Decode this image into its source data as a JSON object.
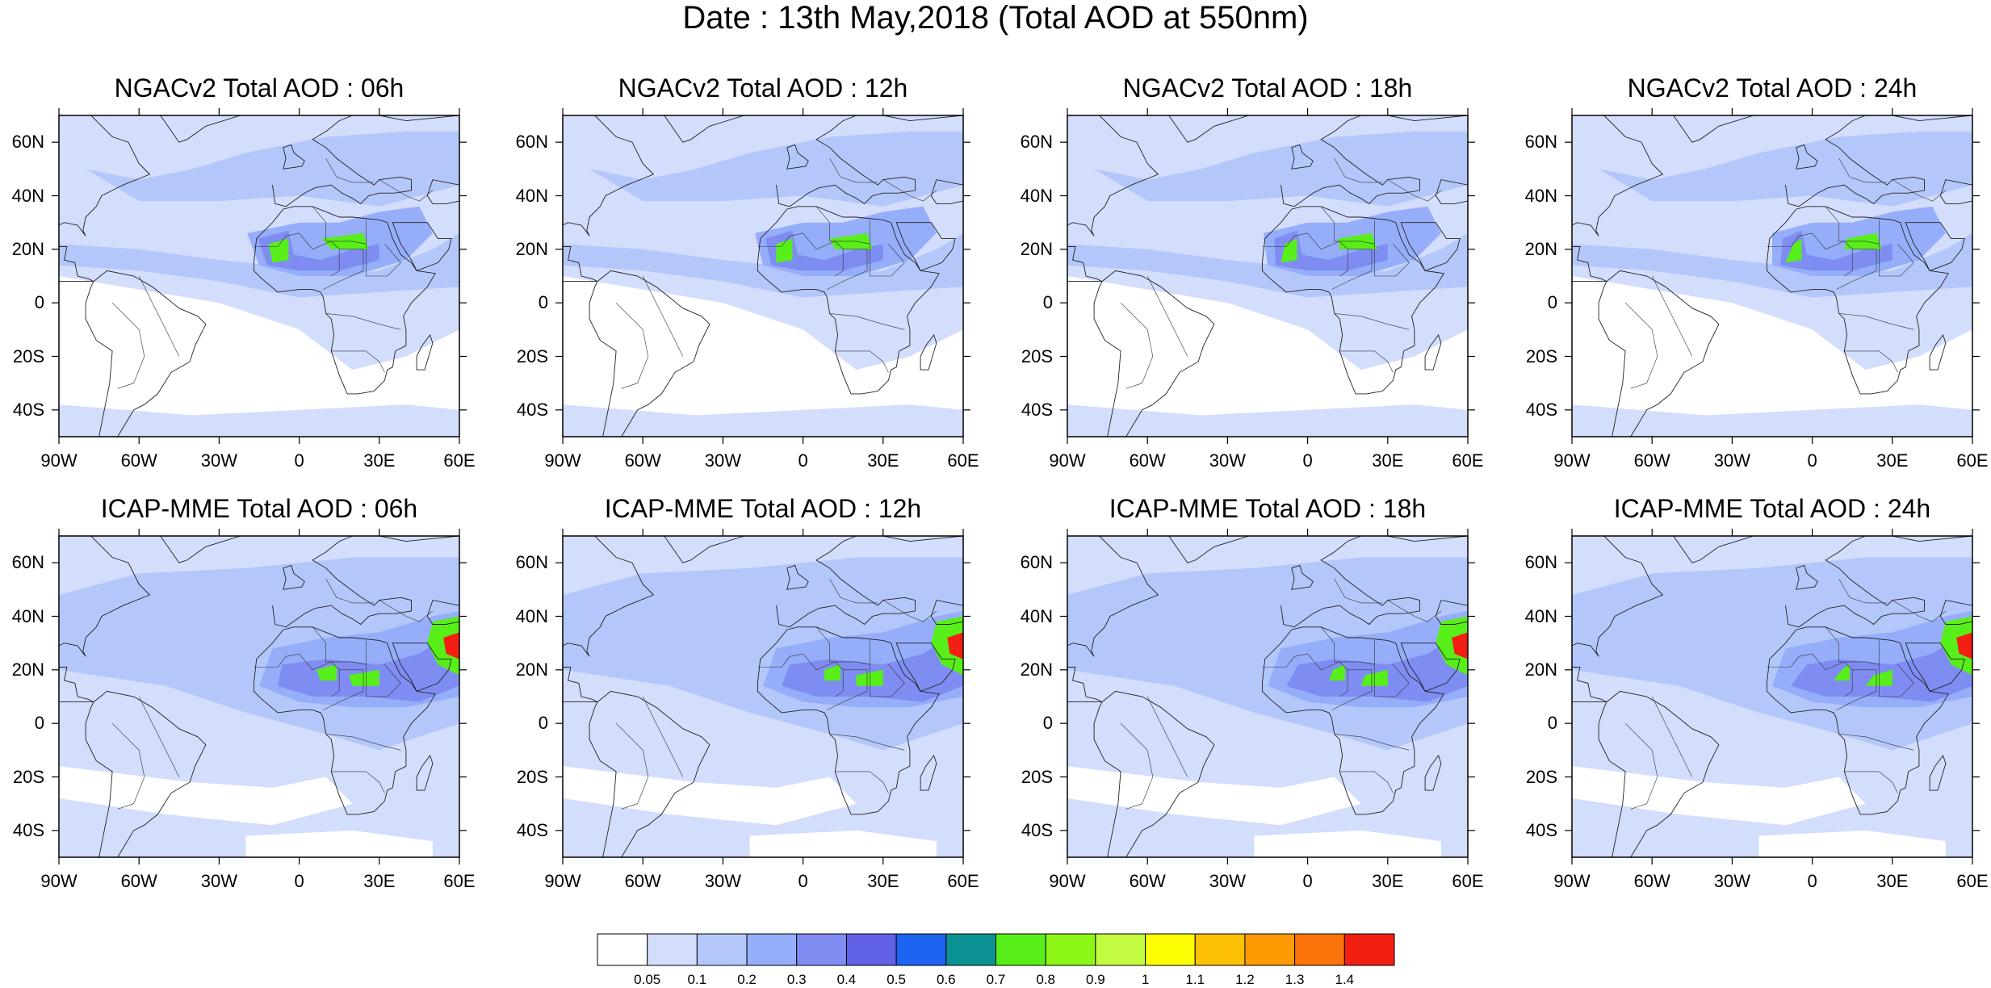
{
  "title": "Date : 13th May,2018 (Total AOD at 550nm)",
  "lon_labels": [
    "90W",
    "60W",
    "30W",
    "0",
    "30E",
    "60E"
  ],
  "lat_labels": [
    "60N",
    "40N",
    "20N",
    "0",
    "20S",
    "40S"
  ],
  "lon_range": [
    -90,
    60
  ],
  "lat_range": [
    -50,
    70
  ],
  "panels": [
    {
      "title": "NGACv2 Total AOD : 06h",
      "model": "NGACv2",
      "hour": 6
    },
    {
      "title": "NGACv2 Total AOD : 12h",
      "model": "NGACv2",
      "hour": 12
    },
    {
      "title": "NGACv2 Total AOD : 18h",
      "model": "NGACv2",
      "hour": 18
    },
    {
      "title": "NGACv2 Total AOD : 24h",
      "model": "NGACv2",
      "hour": 24
    },
    {
      "title": "ICAP-MME Total AOD : 06h",
      "model": "ICAP-MME",
      "hour": 6
    },
    {
      "title": "ICAP-MME Total AOD : 12h",
      "model": "ICAP-MME",
      "hour": 12
    },
    {
      "title": "ICAP-MME Total AOD : 18h",
      "model": "ICAP-MME",
      "hour": 18
    },
    {
      "title": "ICAP-MME Total AOD : 24h",
      "model": "ICAP-MME",
      "hour": 24
    }
  ],
  "colorbar": {
    "labels": [
      "0.05",
      "0.1",
      "0.2",
      "0.3",
      "0.4",
      "0.5",
      "0.6",
      "0.7",
      "0.8",
      "0.9",
      "1",
      "1.1",
      "1.2",
      "1.3",
      "1.4"
    ],
    "colors": [
      "#ffffff",
      "#d3ddfc",
      "#b4c7fb",
      "#96aefa",
      "#7f8df3",
      "#6262e6",
      "#1d64f2",
      "#0a9392",
      "#58ee19",
      "#8cf716",
      "#c2fb3f",
      "#fdfe03",
      "#fdc003",
      "#fd9a04",
      "#fa730b",
      "#f21f12"
    ]
  },
  "field_colors": {
    "land": "#ffffff",
    "low": "#d3ddfc",
    "medium": "#b4c7fb",
    "high": "#96aefa",
    "dust": "#7f8df3",
    "dust_core": "#58ee19",
    "peak": "#f21f12"
  }
}
